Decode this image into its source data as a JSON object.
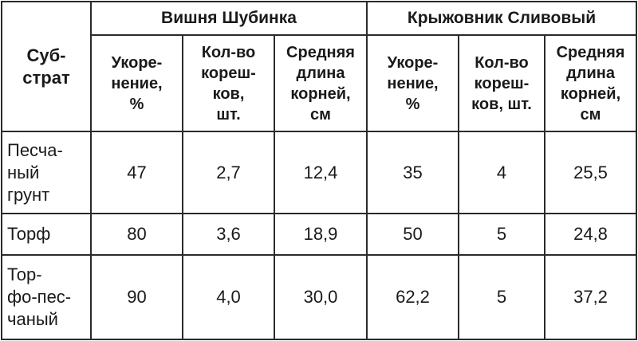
{
  "table": {
    "corner_header": "Суб-\nстрат",
    "groups": [
      "Вишня Шубинка",
      "Крыжовник Сливовый"
    ],
    "subheaders": [
      "Укоре-\nнение,\n%",
      "Кол-во\nкореш-\nков,\nшт.",
      "Средняя\nдлина\nкорней,\nсм",
      "Укоре-\nнение,\n%",
      "Кол-во\nкореш-\nков, шт.",
      "Средняя\nдлина\nкорней,\nсм"
    ],
    "rows": [
      {
        "label": "Песча-\nный\nгрунт",
        "values": [
          "47",
          "2,7",
          "12,4",
          "35",
          "4",
          "25,5"
        ]
      },
      {
        "label": "Торф",
        "values": [
          "80",
          "3,6",
          "18,9",
          "50",
          "5",
          "24,8"
        ]
      },
      {
        "label": "Тор-\nфо-пес-\nчаный",
        "values": [
          "90",
          "4,0",
          "30,0",
          "62,2",
          "5",
          "37,2"
        ]
      }
    ]
  }
}
